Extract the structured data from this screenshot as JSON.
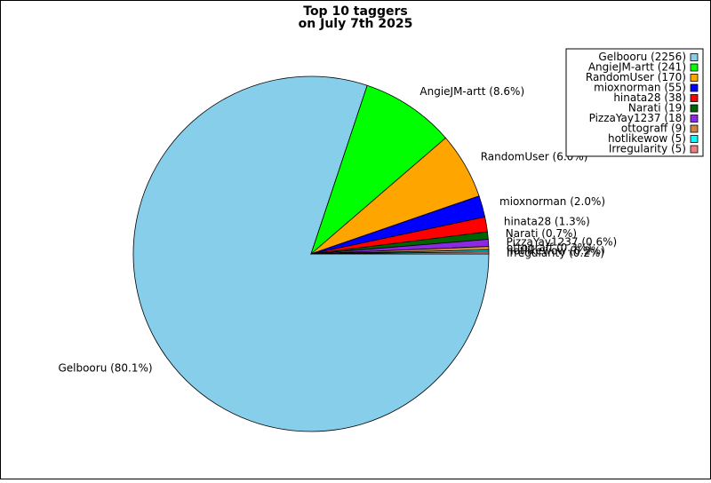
{
  "chart_data": {
    "type": "pie",
    "title": [
      "Top 10 taggers",
      "on July 7th 2025"
    ],
    "legend_position": "top-right",
    "slices": [
      {
        "name": "Gelbooru",
        "count": 2256,
        "percent_label": "80.1%",
        "color": "#87ceeb"
      },
      {
        "name": "AngieJM-artt",
        "count": 241,
        "percent_label": "8.6%",
        "color": "#00ff00"
      },
      {
        "name": "RandomUser",
        "count": 170,
        "percent_label": "6.0%",
        "color": "#ffa500"
      },
      {
        "name": "mioxnorman",
        "count": 55,
        "percent_label": "2.0%",
        "color": "#0000ff"
      },
      {
        "name": "hinata28",
        "count": 38,
        "percent_label": "1.3%",
        "color": "#ff0000"
      },
      {
        "name": "Narati",
        "count": 19,
        "percent_label": "0.7%",
        "color": "#006400"
      },
      {
        "name": "PizzaYay1237",
        "count": 18,
        "percent_label": "0.6%",
        "color": "#8a2be2"
      },
      {
        "name": "ottograff",
        "count": 9,
        "percent_label": "0.3%",
        "color": "#cd853f"
      },
      {
        "name": "hotlikewow",
        "count": 5,
        "percent_label": "0.2%",
        "color": "#00ffff"
      },
      {
        "name": "Irregularity",
        "count": 5,
        "percent_label": "0.2%",
        "color": "#f08080"
      }
    ]
  }
}
